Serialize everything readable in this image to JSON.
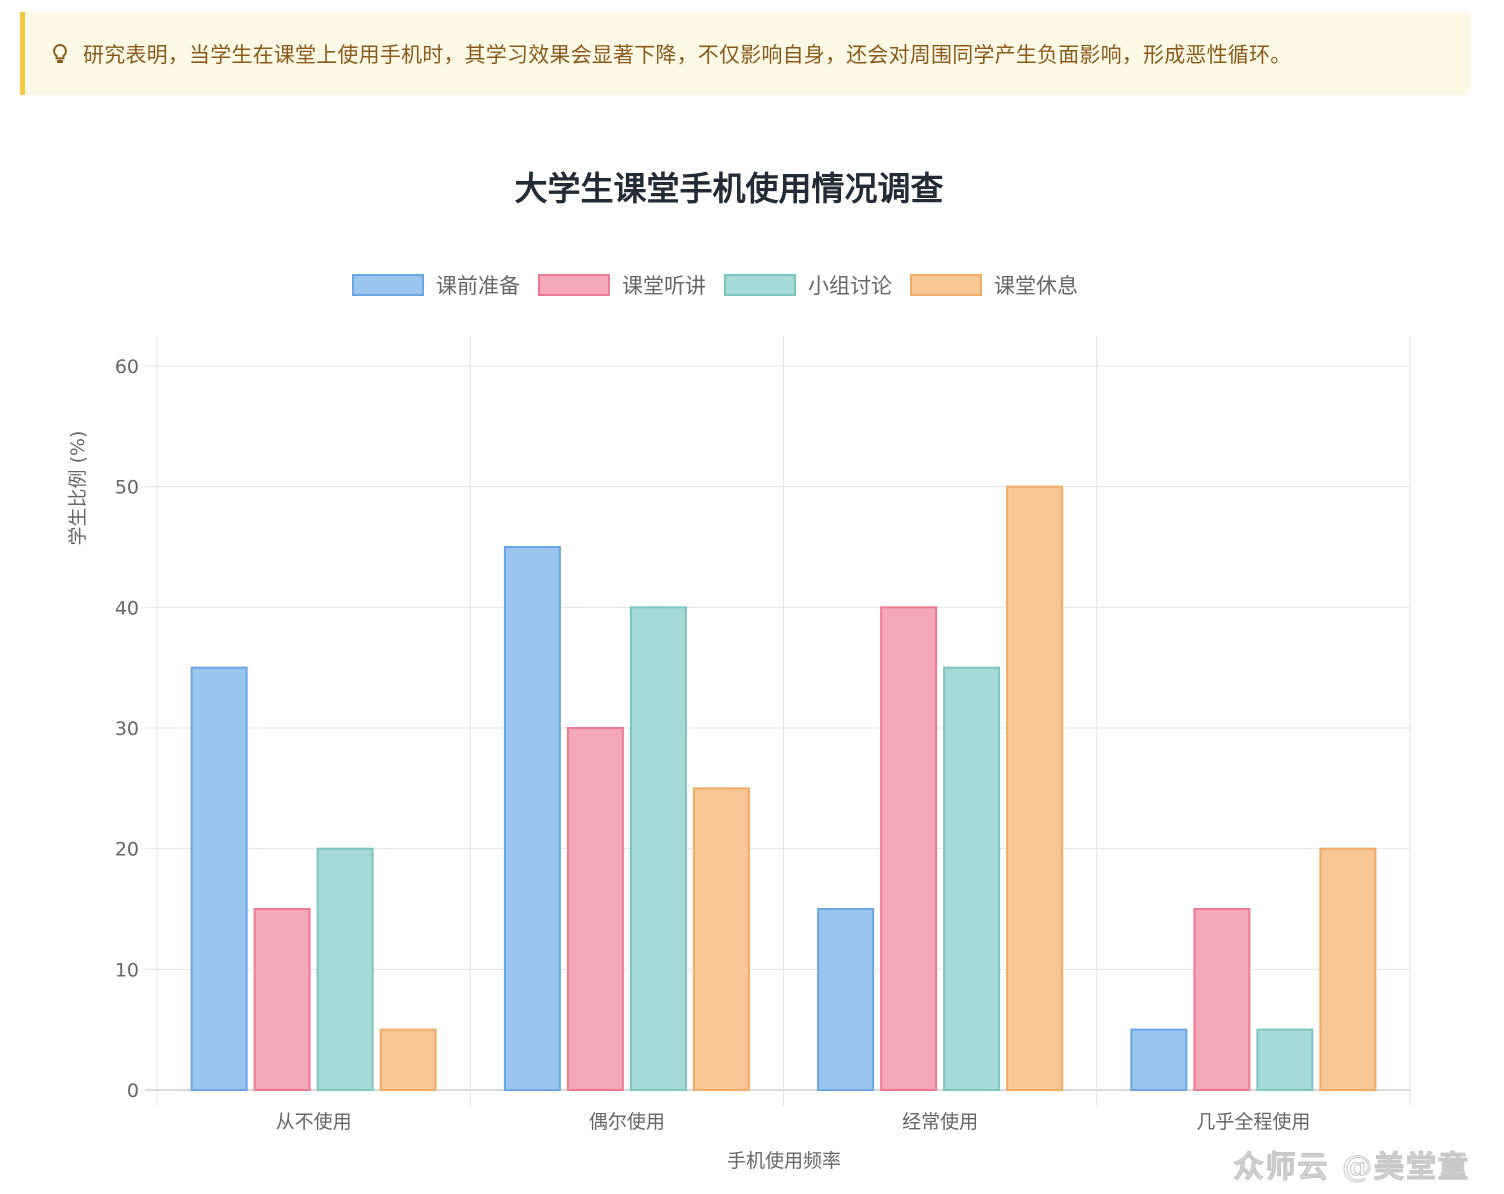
{
  "tip": {
    "icon": "lightbulb-icon",
    "text": "研究表明，当学生在课堂上使用手机时，其学习效果会显著下降，不仅影响自身，还会对周围同学产生负面影响，形成恶性循环。",
    "colors": {
      "background": "#fef9e7",
      "border": "#f5c842",
      "text": "#8b5a1b"
    }
  },
  "chart_data": {
    "type": "bar",
    "title": "大学生课堂手机使用情况调查",
    "xlabel": "手机使用频率",
    "ylabel": "学生比例 (%)",
    "categories": [
      "从不使用",
      "偶尔使用",
      "经常使用",
      "几乎全程使用"
    ],
    "series": [
      {
        "name": "课前准备",
        "values": [
          35,
          45,
          15,
          5
        ],
        "fill": "#9bc4ee",
        "stroke": "#6aa6e4"
      },
      {
        "name": "课堂听讲",
        "values": [
          15,
          30,
          40,
          15
        ],
        "fill": "#f3a7b7",
        "stroke": "#eb7b93"
      },
      {
        "name": "小组讨论",
        "values": [
          20,
          40,
          35,
          5
        ],
        "fill": "#a7d9d7",
        "stroke": "#7cc5c1"
      },
      {
        "name": "课堂休息",
        "values": [
          5,
          25,
          50,
          20
        ],
        "fill": "#f6c695",
        "stroke": "#f1ab66"
      }
    ],
    "ylim": [
      0,
      60
    ],
    "yticks": [
      0,
      10,
      20,
      30,
      40,
      50,
      60
    ],
    "grid": true,
    "legend_position": "top"
  },
  "watermark": "众师云 @美堂童"
}
